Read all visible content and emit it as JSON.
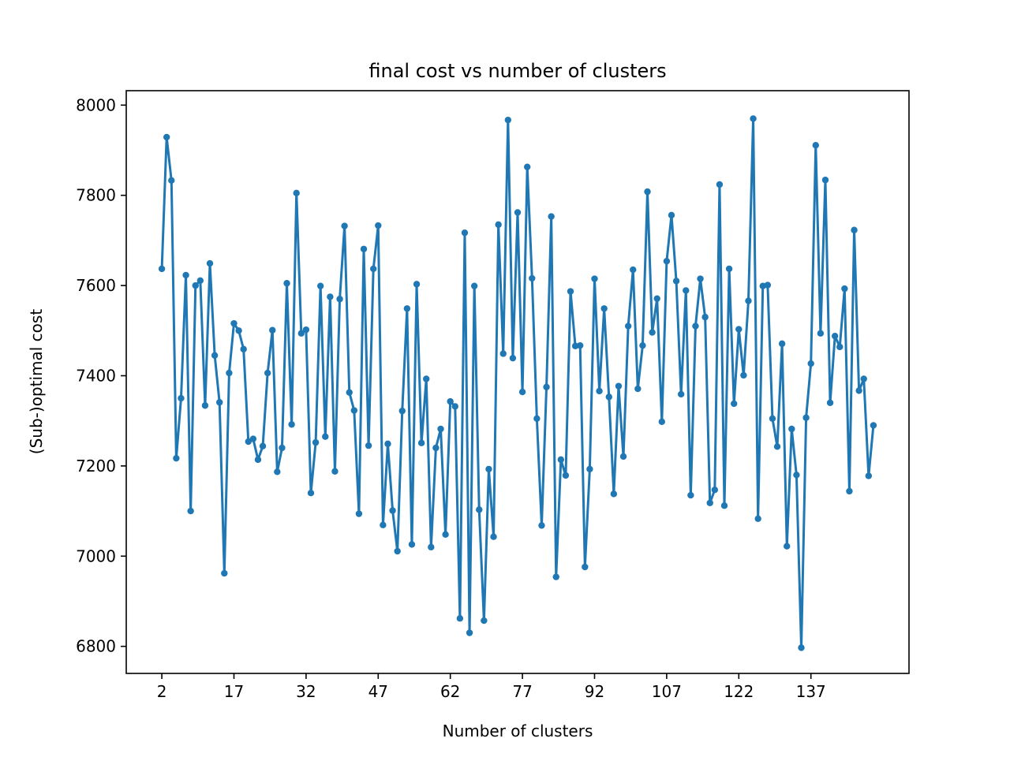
{
  "chart_data": {
    "type": "line",
    "title": "final cost vs number of clusters",
    "xlabel": "Number of clusters",
    "ylabel": "(Sub-)optimal cost",
    "xlim": [
      -5.4,
      157.4
    ],
    "ylim": [
      6740,
      8032
    ],
    "xticks": [
      2,
      17,
      32,
      47,
      62,
      77,
      92,
      107,
      122,
      137
    ],
    "yticks": [
      6800,
      7000,
      7200,
      7400,
      7600,
      7800,
      8000
    ],
    "grid": false,
    "line_color": "#1f77b4",
    "series": [
      {
        "x_start": 2,
        "values": [
          7637,
          7929,
          7833,
          7217,
          7350,
          7623,
          7100,
          7600,
          7611,
          7334,
          7649,
          7445,
          7341,
          6962,
          7406,
          7516,
          7500,
          7459,
          7254,
          7260,
          7214,
          7244,
          7406,
          7501,
          7187,
          7240,
          7605,
          7292,
          7805,
          7494,
          7502,
          7140,
          7252,
          7599,
          7265,
          7575,
          7188,
          7570,
          7732,
          7363,
          7323,
          7094,
          7681,
          7245,
          7637,
          7733,
          7069,
          7249,
          7101,
          7011,
          7322,
          7549,
          7026,
          7603,
          7251,
          7393,
          7020,
          7240,
          7282,
          7048,
          7343,
          7332,
          6862,
          7717,
          6830,
          7599,
          7103,
          6857,
          7193,
          7043,
          7735,
          7449,
          7967,
          7439,
          7762,
          7364,
          7863,
          7616,
          7305,
          7068,
          7375,
          7753,
          6954,
          7214,
          7179,
          7587,
          7466,
          7467,
          6976,
          7193,
          7615,
          7366,
          7549,
          7353,
          7138,
          7377,
          7221,
          7510,
          7635,
          7371,
          7467,
          7808,
          7496,
          7571,
          7298,
          7654,
          7756,
          7610,
          7359,
          7589,
          7135,
          7510,
          7615,
          7530,
          7118,
          7147,
          7824,
          7112,
          7637,
          7338,
          7503,
          7401,
          7566,
          7970,
          7083,
          7599,
          7601,
          7305,
          7243,
          7471,
          7022,
          7282,
          7180,
          6797,
          7307,
          7427,
          7911,
          7494,
          7834,
          7340,
          7488,
          7464,
          7593,
          7144,
          7723,
          7367,
          7393,
          7178,
          7290
        ]
      }
    ]
  }
}
